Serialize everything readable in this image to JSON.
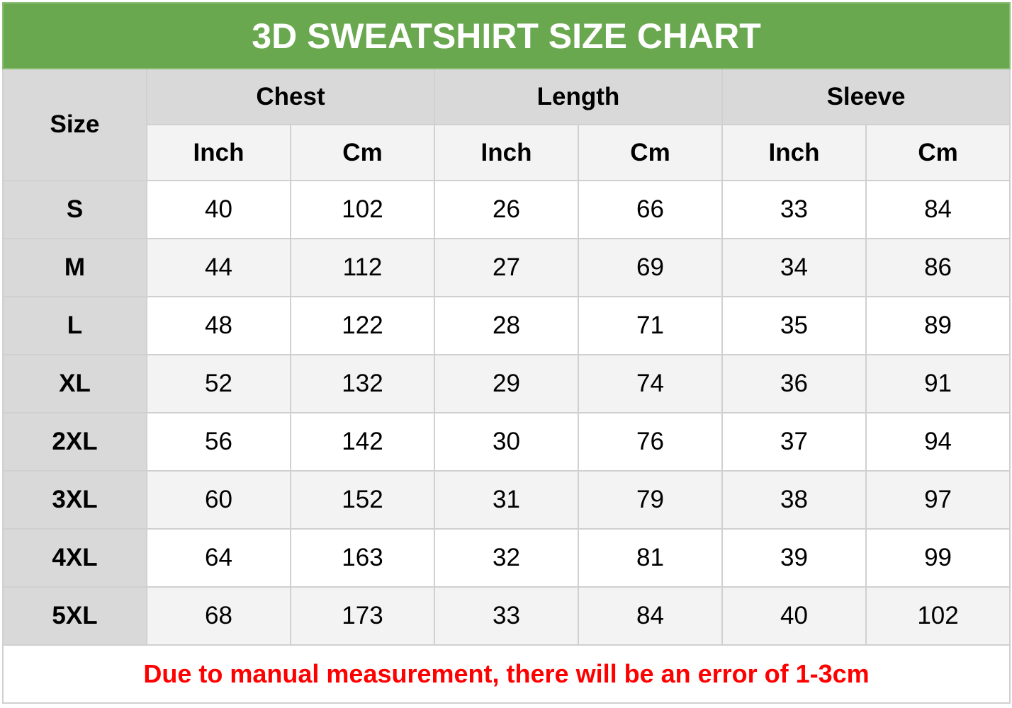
{
  "title": "3D SWEATSHIRT SIZE CHART",
  "header": {
    "size": "Size",
    "groups": [
      "Chest",
      "Length",
      "Sleeve"
    ],
    "units": [
      "Inch",
      "Cm",
      "Inch",
      "Cm",
      "Inch",
      "Cm"
    ]
  },
  "rows": [
    {
      "size": "S",
      "values": [
        "40",
        "102",
        "26",
        "66",
        "33",
        "84"
      ]
    },
    {
      "size": "M",
      "values": [
        "44",
        "112",
        "27",
        "69",
        "34",
        "86"
      ]
    },
    {
      "size": "L",
      "values": [
        "48",
        "122",
        "28",
        "71",
        "35",
        "89"
      ]
    },
    {
      "size": "XL",
      "values": [
        "52",
        "132",
        "29",
        "74",
        "36",
        "91"
      ]
    },
    {
      "size": "2XL",
      "values": [
        "56",
        "142",
        "30",
        "76",
        "37",
        "94"
      ]
    },
    {
      "size": "3XL",
      "values": [
        "60",
        "152",
        "31",
        "79",
        "38",
        "97"
      ]
    },
    {
      "size": "4XL",
      "values": [
        "64",
        "163",
        "32",
        "81",
        "39",
        "99"
      ]
    },
    {
      "size": "5XL",
      "values": [
        "68",
        "173",
        "33",
        "84",
        "40",
        "102"
      ]
    }
  ],
  "note": "Due to manual measurement, there will be an error of 1-3cm",
  "colors": {
    "title_bg": "#6aa84f",
    "note_text": "#ff0000",
    "header_bg": "#d9d9d9",
    "alt_row_bg": "#f3f3f3"
  }
}
